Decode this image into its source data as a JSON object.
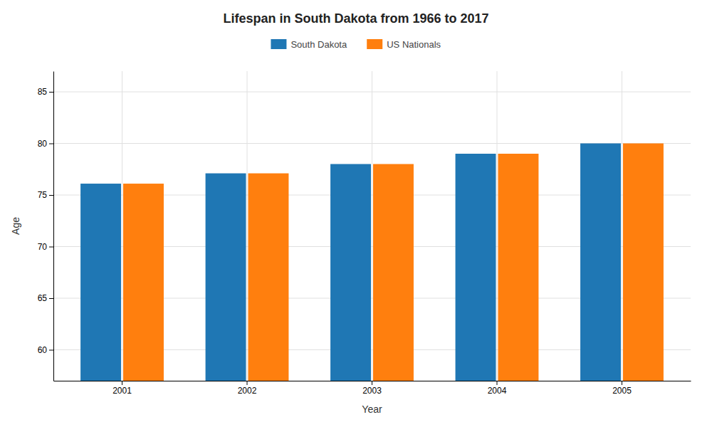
{
  "chart_data": {
    "type": "bar",
    "title": "Lifespan in South Dakota from 1966 to 2017",
    "xlabel": "Year",
    "ylabel": "Age",
    "categories": [
      "2001",
      "2002",
      "2003",
      "2004",
      "2005"
    ],
    "series": [
      {
        "name": "South Dakota",
        "values": [
          76.1,
          77.1,
          78.0,
          79.0,
          80.0
        ]
      },
      {
        "name": "US Nationals",
        "values": [
          76.1,
          77.1,
          78.0,
          79.0,
          80.0
        ]
      }
    ],
    "ylim": [
      57,
      87
    ],
    "yticks": [
      60,
      65,
      70,
      75,
      80,
      85
    ],
    "grid": true,
    "legend": "top"
  }
}
